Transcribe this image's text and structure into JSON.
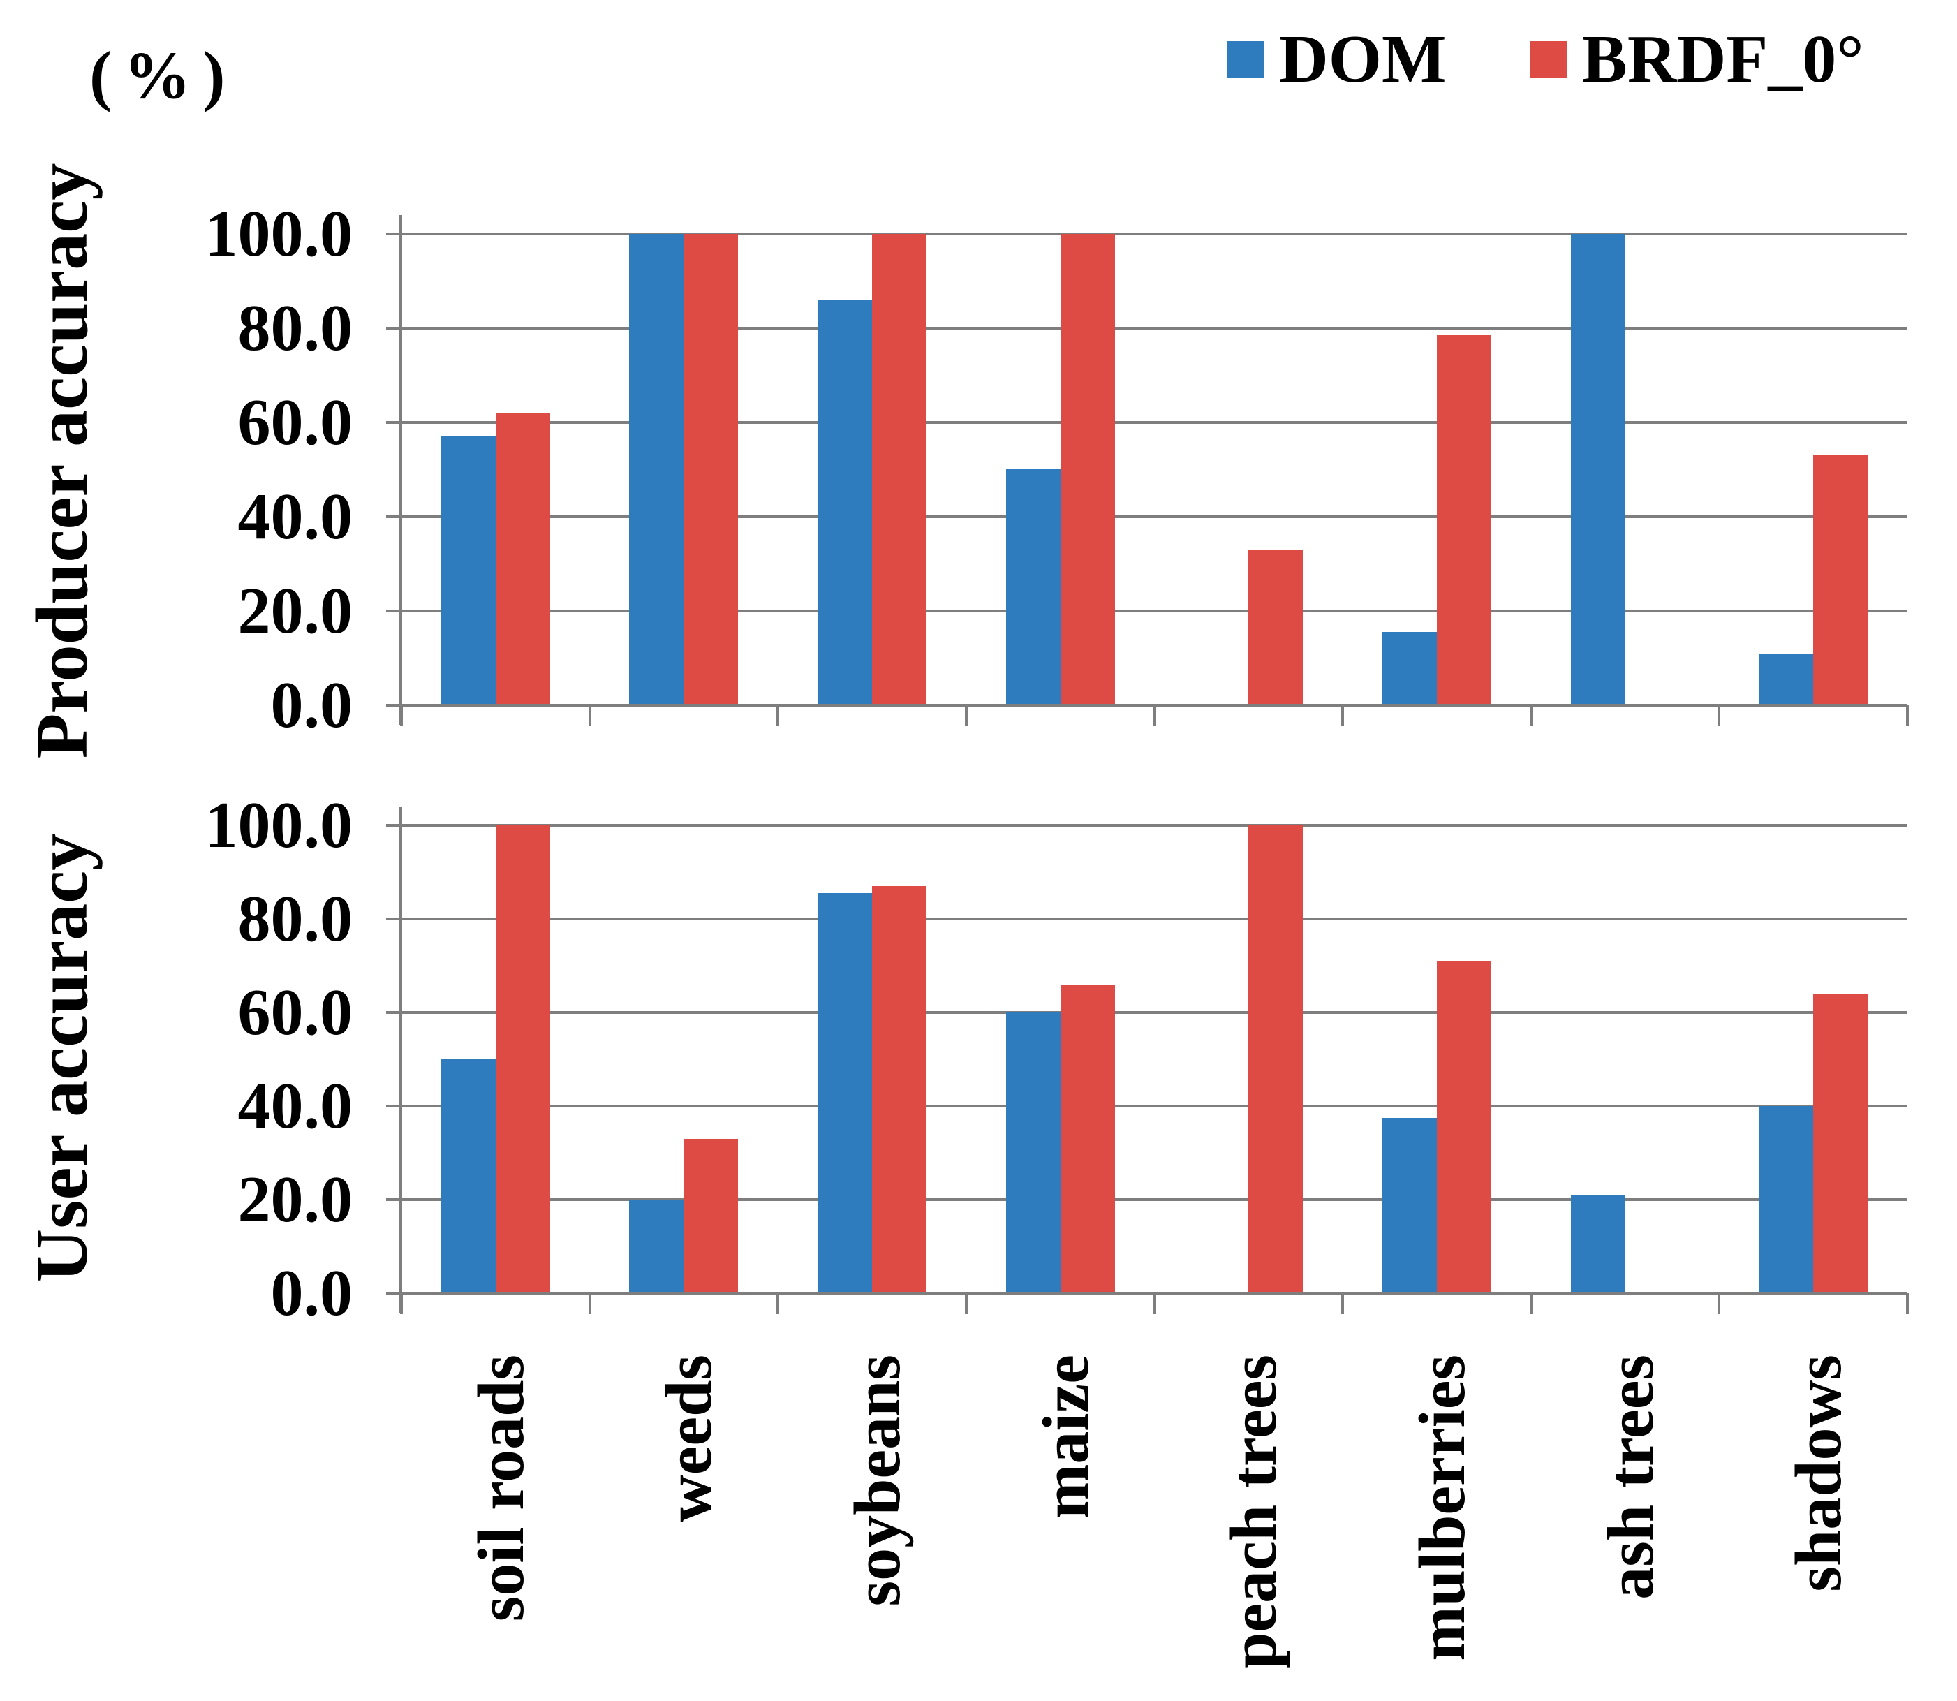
{
  "unit_label": "(%)",
  "legend": {
    "series": [
      {
        "label": "DOM",
        "color": "#2e7bbe"
      },
      {
        "label": "BRDF_0°",
        "color": "#de4b45"
      }
    ]
  },
  "chart_data": [
    {
      "type": "bar",
      "title": "Producer accuracy",
      "ylabel": "Producer accuracy",
      "xlabel": "",
      "categories": [
        "soil roads",
        "weeds",
        "soybeans",
        "maize",
        "peach trees",
        "mulberries",
        "ash trees",
        "shadows"
      ],
      "series": [
        {
          "name": "DOM",
          "color": "#2e7bbe",
          "values": [
            57,
            100,
            86,
            50,
            0,
            15.5,
            100,
            11
          ]
        },
        {
          "name": "BRDF_0°",
          "color": "#de4b45",
          "values": [
            62,
            100,
            100,
            100,
            33,
            78.5,
            0,
            53
          ]
        }
      ],
      "ylim": [
        0,
        100
      ],
      "yticks": [
        0,
        20,
        40,
        60,
        80,
        100
      ],
      "ytick_labels": [
        "0.0",
        "20.0",
        "40.0",
        "60.0",
        "80.0",
        "100.0"
      ],
      "grid": true,
      "legend_position": "top-right"
    },
    {
      "type": "bar",
      "title": "User accuracy",
      "ylabel": "User accuracy",
      "xlabel": "",
      "categories": [
        "soil roads",
        "weeds",
        "soybeans",
        "maize",
        "peach trees",
        "mulberries",
        "ash trees",
        "shadows"
      ],
      "series": [
        {
          "name": "DOM",
          "color": "#2e7bbe",
          "values": [
            50,
            20,
            85.5,
            60,
            0,
            37.5,
            21,
            40
          ]
        },
        {
          "name": "BRDF_0°",
          "color": "#de4b45",
          "values": [
            100,
            33,
            87,
            66,
            100,
            71,
            0,
            64
          ]
        }
      ],
      "ylim": [
        0,
        100
      ],
      "yticks": [
        0,
        20,
        40,
        60,
        80,
        100
      ],
      "ytick_labels": [
        "0.0",
        "20.0",
        "40.0",
        "60.0",
        "80.0",
        "100.0"
      ],
      "grid": true,
      "legend_position": "none"
    }
  ]
}
